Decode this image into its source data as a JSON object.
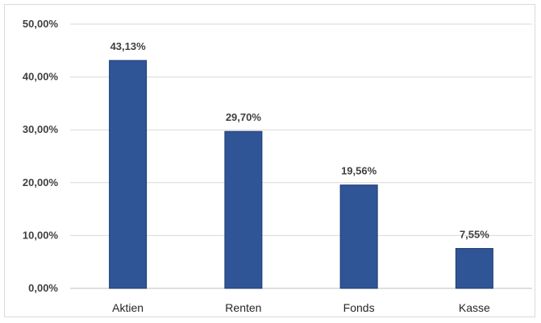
{
  "colors": {
    "bar": "#2f5597",
    "bar_edge": "#1f3a6b",
    "grid": "#d9d9d9",
    "axis": "#bfbfbf"
  },
  "chart_data": {
    "type": "bar",
    "categories": [
      "Aktien",
      "Renten",
      "Fonds",
      "Kasse"
    ],
    "values": [
      43.13,
      29.7,
      19.56,
      7.55
    ],
    "data_labels": [
      "43,13%",
      "29,70%",
      "19,56%",
      "7,55%"
    ],
    "title": "",
    "xlabel": "",
    "ylabel": "",
    "ylim": [
      0,
      50
    ],
    "yticks": [
      0,
      10,
      20,
      30,
      40,
      50
    ],
    "ytick_labels": [
      "0,00%",
      "10,00%",
      "20,00%",
      "30,00%",
      "40,00%",
      "50,00%"
    ],
    "grid": true,
    "legend": "none"
  }
}
